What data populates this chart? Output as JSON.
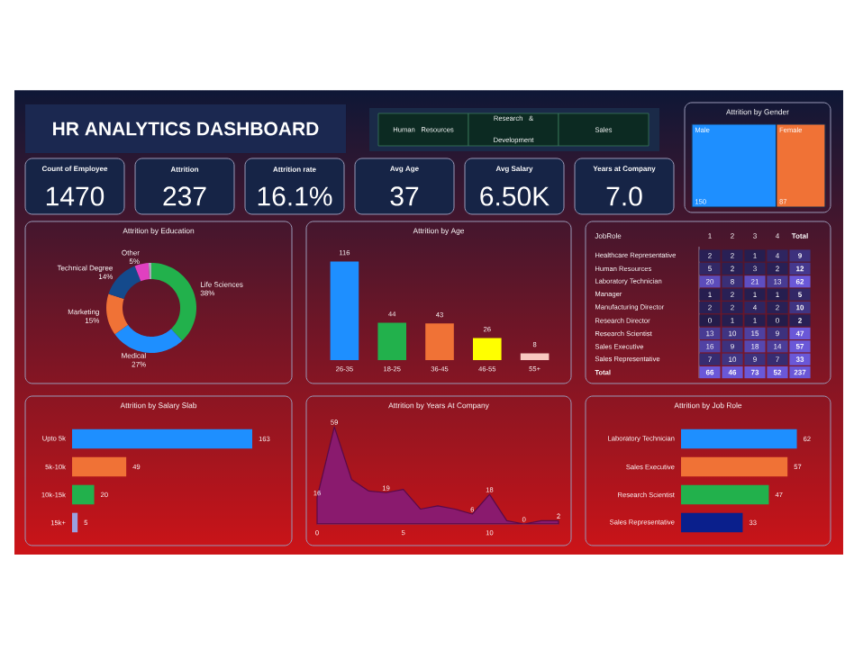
{
  "chart_data": [
    {
      "type": "other",
      "title": "HR ANALYTICS DASHBOARD",
      "annotations": [
        "Human Resources",
        "Research & Development",
        "Sales"
      ],
      "categories": [
        "Count of Employee",
        "Attrition",
        "Attrition rate",
        "Avg Age",
        "Avg Salary",
        "Years at Company"
      ],
      "values": [
        1470,
        237,
        16.1,
        37,
        6500,
        7.0
      ],
      "value_labels": [
        "1470",
        "237",
        "16.1%",
        "37",
        "6.50K",
        "7.0"
      ]
    },
    {
      "type": "other",
      "title": "Attrition by Gender",
      "categories": [
        "Male",
        "Female"
      ],
      "values": [
        150,
        87
      ],
      "colors": [
        "#1e8fff",
        "#f07236"
      ],
      "data_labels": true
    },
    {
      "type": "donut",
      "title": "Attrition by Education",
      "categories": [
        "Life Sciences",
        "Medical",
        "Marketing",
        "Technical Degree",
        "Other",
        null
      ],
      "values": [
        38,
        27,
        15,
        14,
        5,
        1
      ],
      "value_labels": [
        "38%",
        "27%",
        "15%",
        "14%",
        "5%",
        null
      ],
      "colors": [
        "#22b14c",
        "#1e8fff",
        "#f07236",
        "#144a8c",
        "#e040c0",
        "#a8a8b8"
      ]
    },
    {
      "type": "bar",
      "title": "Attrition by Age",
      "categories": [
        "26-35",
        "18-25",
        "36-45",
        "46-55",
        "55+"
      ],
      "values": [
        116,
        44,
        43,
        26,
        8
      ],
      "colors": [
        "#1e8fff",
        "#22b14c",
        "#f07236",
        "#ffff00",
        "#f8c8c0"
      ],
      "data_labels": true
    },
    {
      "type": "heatmap",
      "data_labels": true,
      "ylabel": "JobRole",
      "categories": [
        "1",
        "2",
        "3",
        "4",
        "Total"
      ],
      "y_categories": [
        "Healthcare Representative",
        "Human Resources",
        "Laboratory Technician",
        "Manager",
        "Manufacturing Director",
        "Research Director",
        "Research Scientist",
        "Sales Executive",
        "Sales Representative",
        "Total"
      ],
      "cells": [
        [
          2,
          2,
          1,
          4,
          9
        ],
        [
          5,
          2,
          3,
          2,
          12
        ],
        [
          20,
          8,
          21,
          13,
          62
        ],
        [
          1,
          2,
          1,
          1,
          5
        ],
        [
          2,
          2,
          4,
          2,
          10
        ],
        [
          0,
          1,
          1,
          0,
          2
        ],
        [
          13,
          10,
          15,
          9,
          47
        ],
        [
          16,
          9,
          18,
          14,
          57
        ],
        [
          7,
          10,
          9,
          7,
          33
        ],
        [
          66,
          46,
          73,
          52,
          237
        ]
      ]
    },
    {
      "type": "bar",
      "orientation": "horizontal",
      "title": "Attrition by Salary Slab",
      "categories": [
        "Upto 5k",
        "5k-10k",
        "10k-15k",
        "15k+"
      ],
      "values": [
        163,
        49,
        20,
        5
      ],
      "colors": [
        "#1e8fff",
        "#f07236",
        "#22b14c",
        "#9aa0e0"
      ],
      "data_labels": true
    },
    {
      "type": "area",
      "title": "Attrition by Years At Company",
      "x": [
        0,
        1,
        2,
        3,
        4,
        5,
        6,
        7,
        8,
        9,
        10,
        11,
        12,
        13,
        14
      ],
      "values": [
        16,
        59,
        27,
        20,
        19,
        21,
        9,
        11,
        9,
        6,
        18,
        2,
        0,
        2,
        2
      ],
      "value_labels": [
        "16",
        "59",
        null,
        null,
        "19",
        null,
        null,
        null,
        null,
        "6",
        "18",
        null,
        "0",
        null,
        "2"
      ],
      "color": "#8a1a6e",
      "xlim": [
        0,
        14
      ],
      "xticks": [
        0,
        5,
        10
      ]
    },
    {
      "type": "bar",
      "orientation": "horizontal",
      "title": "Attrition by Job Role",
      "categories": [
        "Laboratory Technician",
        "Sales Executive",
        "Research Scientist",
        "Sales Representative"
      ],
      "values": [
        62,
        57,
        47,
        33
      ],
      "colors": [
        "#1e8fff",
        "#f07236",
        "#22b14c",
        "#0a1f8c"
      ],
      "data_labels": true
    }
  ]
}
